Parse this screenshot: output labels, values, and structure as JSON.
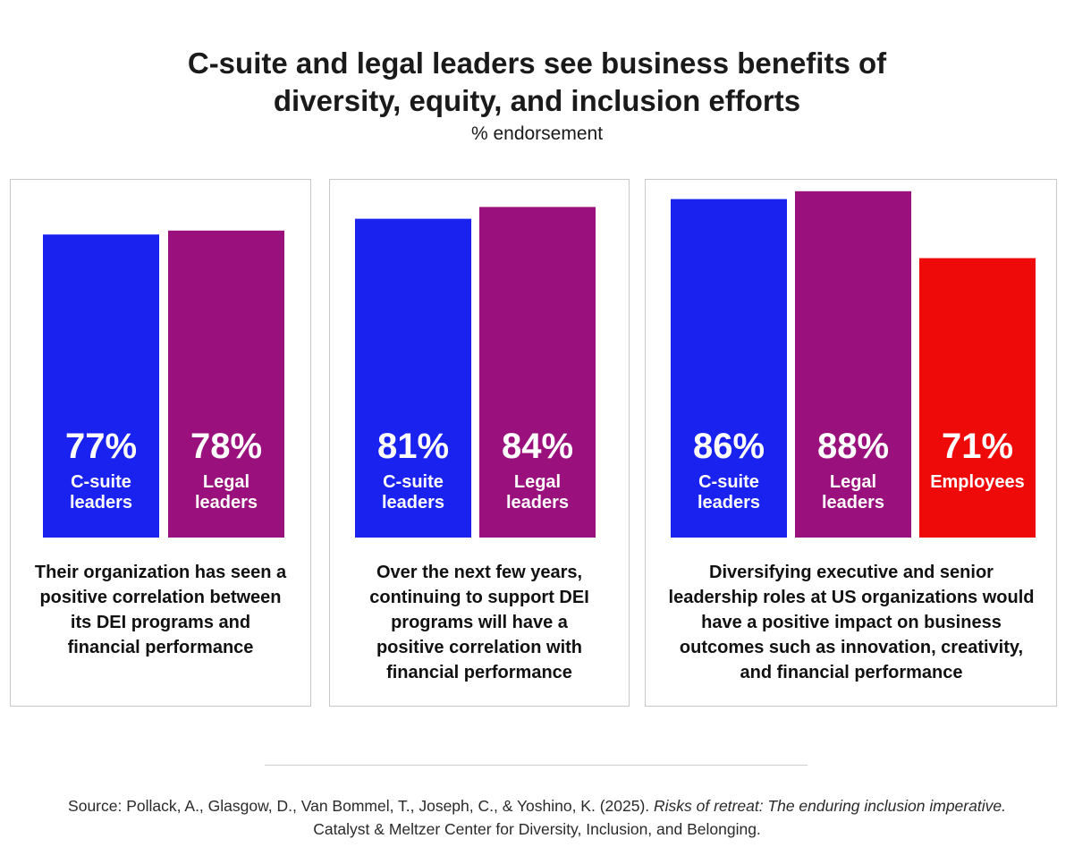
{
  "header": {
    "title_line1": "C-suite and legal leaders see business benefits of",
    "title_line2": "diversity, equity, and inclusion efforts",
    "subtitle": "% endorsement"
  },
  "colors": {
    "c_suite": "#1a22f0",
    "legal": "#9a107c",
    "employees": "#ef0a0a"
  },
  "chart_data": [
    {
      "type": "bar",
      "categories": [
        "C-suite leaders",
        "Legal leaders"
      ],
      "values": [
        77,
        78
      ],
      "value_labels": [
        "77%",
        "78%"
      ],
      "label_lines": [
        [
          "C-suite",
          "leaders"
        ],
        [
          "Legal",
          "leaders"
        ]
      ],
      "bar_colors": [
        "#1a22f0",
        "#9a107c"
      ],
      "caption": "Their organization has seen a positive correlation between its DEI programs and financial performance",
      "ylim": [
        0,
        100
      ],
      "grid": false
    },
    {
      "type": "bar",
      "categories": [
        "C-suite leaders",
        "Legal leaders"
      ],
      "values": [
        81,
        84
      ],
      "value_labels": [
        "81%",
        "84%"
      ],
      "label_lines": [
        [
          "C-suite",
          "leaders"
        ],
        [
          "Legal",
          "leaders"
        ]
      ],
      "bar_colors": [
        "#1a22f0",
        "#9a107c"
      ],
      "caption": "Over the next few years, continuing to support DEI programs will have a positive correlation with financial performance",
      "ylim": [
        0,
        100
      ],
      "grid": false
    },
    {
      "type": "bar",
      "categories": [
        "C-suite leaders",
        "Legal leaders",
        "Employees"
      ],
      "values": [
        86,
        88,
        71
      ],
      "value_labels": [
        "86%",
        "88%",
        "71%"
      ],
      "label_lines": [
        [
          "C-suite",
          "leaders"
        ],
        [
          "Legal",
          "leaders"
        ],
        [
          "Employees"
        ]
      ],
      "bar_colors": [
        "#1a22f0",
        "#9a107c",
        "#ef0a0a"
      ],
      "caption": "Diversifying executive and senior leadership roles at US organizations would have a positive impact on business outcomes such as innovation, creativity, and financial performance",
      "ylim": [
        0,
        100
      ],
      "grid": false
    }
  ],
  "source": {
    "prefix": "Source: Pollack, A., Glasgow, D., Van Bommel, T., Joseph, C., & Yoshino, K. (2025). ",
    "italic_title": "Risks of retreat: The enduring inclusion imperative.",
    "line2": "Catalyst & Meltzer Center for Diversity, Inclusion, and Belonging."
  }
}
